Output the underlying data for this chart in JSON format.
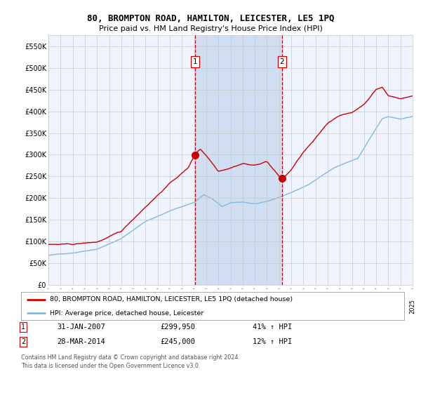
{
  "title": "80, BROMPTON ROAD, HAMILTON, LEICESTER, LE5 1PQ",
  "subtitle": "Price paid vs. HM Land Registry's House Price Index (HPI)",
  "legend_line1": "80, BROMPTON ROAD, HAMILTON, LEICESTER, LE5 1PQ (detached house)",
  "legend_line2": "HPI: Average price, detached house, Leicester",
  "annotation1_date": "31-JAN-2007",
  "annotation1_price": "£299,950",
  "annotation1_hpi": "41% ↑ HPI",
  "annotation2_date": "28-MAR-2014",
  "annotation2_price": "£245,000",
  "annotation2_hpi": "12% ↑ HPI",
  "footer_line1": "Contains HM Land Registry data © Crown copyright and database right 2024.",
  "footer_line2": "This data is licensed under the Open Government Licence v3.0.",
  "hpi_color": "#7cb9e0",
  "sale_color": "#cc0000",
  "background_color": "#ffffff",
  "plot_bg_color": "#f0f4ff",
  "shade_color": "#cddcf0",
  "grid_color": "#c8c8c8",
  "ylim": [
    0,
    575000
  ],
  "yticks": [
    0,
    50000,
    100000,
    150000,
    200000,
    250000,
    300000,
    350000,
    400000,
    450000,
    500000,
    550000
  ],
  "x_start_year": 1995,
  "x_end_year": 2025,
  "sale1_year": 2007.08,
  "sale2_year": 2014.24,
  "sale1_value": 299950,
  "sale2_value": 245000
}
